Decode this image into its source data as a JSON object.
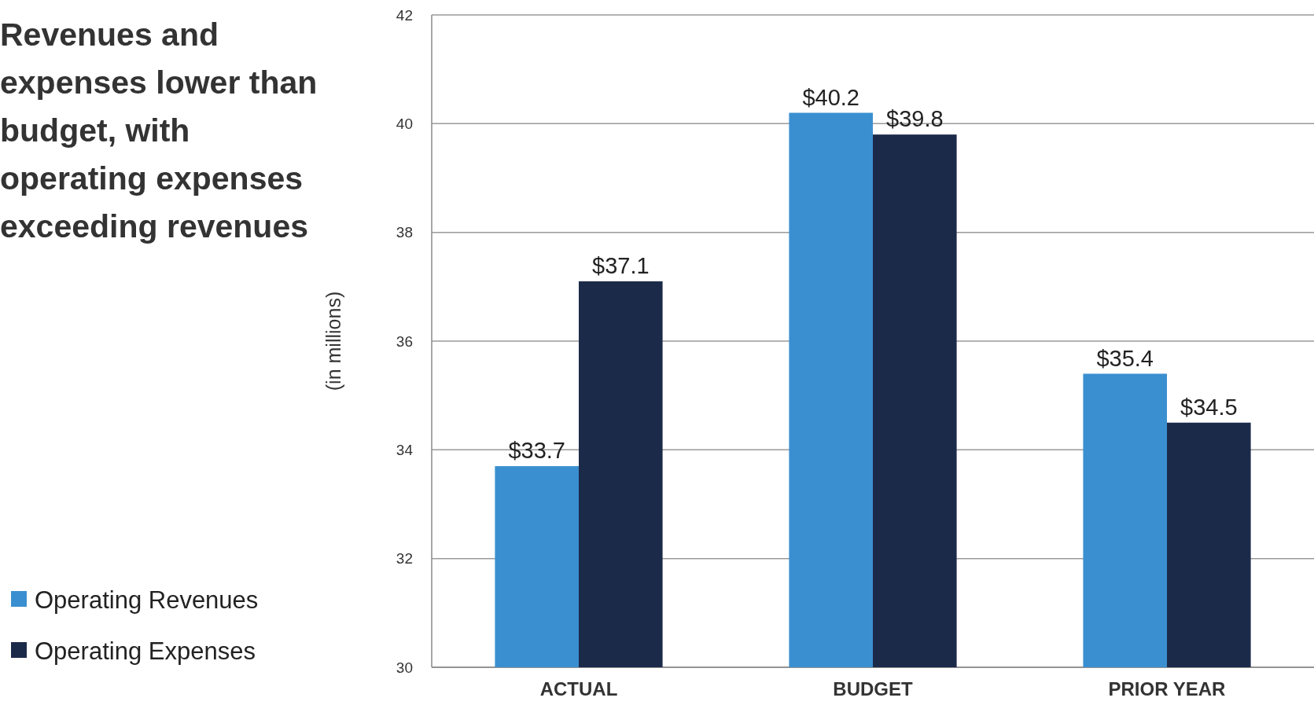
{
  "chart_data": {
    "type": "bar",
    "title": "Revenues and expenses lower than budget, with operating expenses exceeding revenues",
    "ylabel": "(in millions)",
    "categories": [
      "ACTUAL",
      "BUDGET",
      "PRIOR YEAR"
    ],
    "series": [
      {
        "name": "Operating Revenues",
        "color": "#3a8fd0",
        "values": [
          33.7,
          40.2,
          35.4
        ],
        "value_labels": [
          "$33.7",
          "$40.2",
          "$35.4"
        ]
      },
      {
        "name": "Operating Expenses",
        "color": "#1c2a4a",
        "values": [
          37.1,
          39.8,
          34.5
        ],
        "value_labels": [
          "$37.1",
          "$39.8",
          "$34.5"
        ]
      }
    ],
    "ylim": [
      30,
      42
    ],
    "yticks": [
      30,
      32,
      34,
      36,
      38,
      40,
      42
    ],
    "grid": "y",
    "legend": "bottom left"
  }
}
